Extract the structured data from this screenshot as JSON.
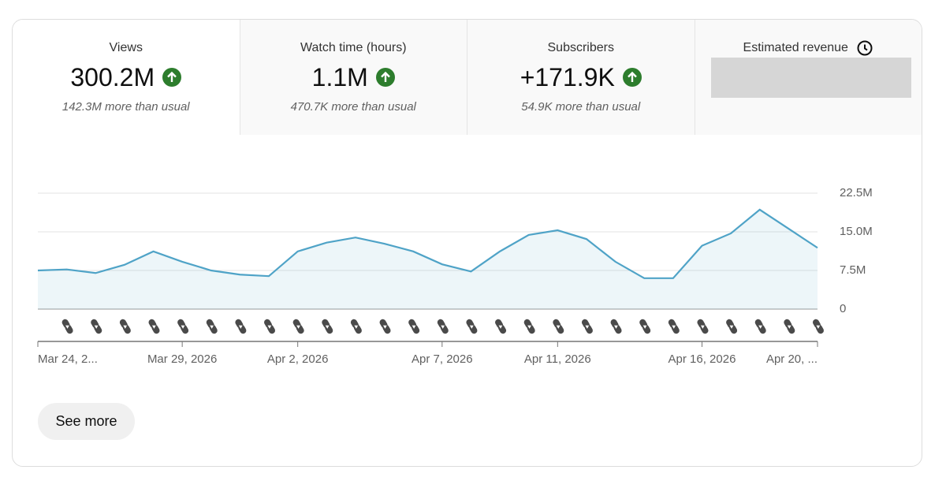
{
  "tabs": [
    {
      "title": "Views",
      "value": "300.2M",
      "note": "142.3M more than usual"
    },
    {
      "title": "Watch time (hours)",
      "value": "1.1M",
      "note": "470.7K more than usual"
    },
    {
      "title": "Subscribers",
      "value": "+171.9K",
      "note": "54.9K more than usual"
    },
    {
      "title": "Estimated revenue"
    }
  ],
  "button": "See more",
  "chart_data": {
    "type": "line",
    "categories": [
      "Mar 24, 2...",
      null,
      null,
      null,
      null,
      "Mar 29, 2026",
      null,
      null,
      null,
      "Apr 2, 2026",
      null,
      null,
      null,
      null,
      "Apr 7, 2026",
      null,
      null,
      null,
      "Apr 11, 2026",
      null,
      null,
      null,
      null,
      "Apr 16, 2026",
      null,
      null,
      null,
      "Apr 20, ..."
    ],
    "series": [
      {
        "name": "Views",
        "color": "#4fa3c7",
        "values": [
          7500000,
          7700000,
          7000000,
          8600000,
          11200000,
          9200000,
          7500000,
          6700000,
          6400000,
          11200000,
          12900000,
          13900000,
          12700000,
          11200000,
          8700000,
          7300000,
          11200000,
          14400000,
          15300000,
          13600000,
          9200000,
          6000000,
          6000000,
          12300000,
          14700000,
          19300000,
          15600000,
          11900000
        ]
      }
    ],
    "ylim": [
      0,
      22500000
    ],
    "yticks": [
      0,
      {
        "value": 7500000,
        "label": "7.5M"
      },
      {
        "value": 15000000,
        "label": "15.0M"
      },
      {
        "value": 22500000,
        "label": "22.5M"
      }
    ],
    "grid": true
  }
}
